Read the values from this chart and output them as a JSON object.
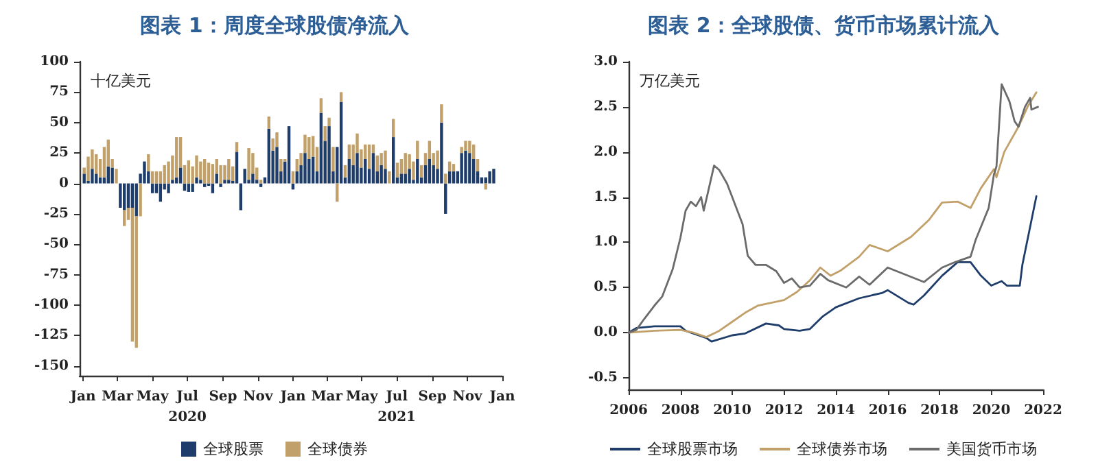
{
  "chart_data": [
    {
      "type": "bar",
      "title": "图表 1：周度全球股债净流入",
      "ylabel": "十亿美元",
      "stacked": true,
      "grid": false,
      "legend": "bottom",
      "x": [
        "2020-01-03",
        "2020-01-10",
        "2020-01-17",
        "2020-01-24",
        "2020-01-31",
        "2020-02-07",
        "2020-02-14",
        "2020-02-21",
        "2020-02-28",
        "2020-03-06",
        "2020-03-13",
        "2020-03-20",
        "2020-03-27",
        "2020-04-03",
        "2020-04-10",
        "2020-04-17",
        "2020-04-24",
        "2020-05-01",
        "2020-05-08",
        "2020-05-15",
        "2020-05-22",
        "2020-05-29",
        "2020-06-05",
        "2020-06-12",
        "2020-06-19",
        "2020-06-26",
        "2020-07-03",
        "2020-07-10",
        "2020-07-17",
        "2020-07-24",
        "2020-07-31",
        "2020-08-07",
        "2020-08-14",
        "2020-08-21",
        "2020-08-28",
        "2020-09-04",
        "2020-09-11",
        "2020-09-18",
        "2020-09-25",
        "2020-10-02",
        "2020-10-09",
        "2020-10-16",
        "2020-10-23",
        "2020-10-30",
        "2020-11-06",
        "2020-11-13",
        "2020-11-20",
        "2020-11-27",
        "2020-12-04",
        "2020-12-11",
        "2020-12-18",
        "2020-12-25",
        "2021-01-01",
        "2021-01-08",
        "2021-01-15",
        "2021-01-22",
        "2021-01-29",
        "2021-02-05",
        "2021-02-12",
        "2021-02-19",
        "2021-02-26",
        "2021-03-05",
        "2021-03-12",
        "2021-03-19",
        "2021-03-26",
        "2021-04-02",
        "2021-04-09",
        "2021-04-16",
        "2021-04-23",
        "2021-04-30",
        "2021-05-07",
        "2021-05-14",
        "2021-05-21",
        "2021-05-28",
        "2021-06-04",
        "2021-06-11",
        "2021-06-18",
        "2021-06-25",
        "2021-07-02",
        "2021-07-09",
        "2021-07-16",
        "2021-07-23",
        "2021-07-30",
        "2021-08-06",
        "2021-08-13",
        "2021-08-20",
        "2021-08-27",
        "2021-09-03",
        "2021-09-10",
        "2021-09-17",
        "2021-09-24",
        "2021-10-01",
        "2021-10-08",
        "2021-10-15",
        "2021-10-22",
        "2021-10-29",
        "2021-11-05",
        "2021-11-12",
        "2021-11-19",
        "2021-11-26",
        "2021-12-03",
        "2021-12-10",
        "2021-12-17"
      ],
      "series": [
        {
          "name": "全球股票",
          "color": "#1f3d6b",
          "values": [
            8,
            2,
            12,
            8,
            5,
            5,
            14,
            13,
            0,
            -20,
            -22,
            -20,
            -20,
            -27,
            8,
            18,
            10,
            -8,
            -8,
            -15,
            -5,
            -8,
            3,
            5,
            13,
            -6,
            -7,
            -7,
            5,
            3,
            -3,
            -2,
            -8,
            8,
            -3,
            3,
            3,
            2,
            26,
            -22,
            12,
            3,
            8,
            3,
            -3,
            5,
            45,
            27,
            30,
            10,
            18,
            47,
            -5,
            10,
            15,
            25,
            20,
            22,
            10,
            58,
            35,
            47,
            10,
            30,
            67,
            5,
            20,
            15,
            25,
            13,
            20,
            12,
            25,
            10,
            15,
            12,
            0,
            38,
            5,
            8,
            8,
            12,
            3,
            20,
            5,
            15,
            20,
            15,
            12,
            50,
            -25,
            10,
            10,
            10,
            25,
            27,
            25,
            20,
            10,
            5,
            5,
            10,
            12
          ]
        },
        {
          "name": "全球债券",
          "color": "#c2a06a",
          "values": [
            5,
            20,
            16,
            16,
            15,
            25,
            22,
            7,
            12,
            0,
            -13,
            -10,
            -110,
            -108,
            -27,
            0,
            14,
            10,
            10,
            10,
            15,
            18,
            20,
            33,
            25,
            15,
            19,
            14,
            18,
            15,
            20,
            17,
            16,
            12,
            15,
            12,
            17,
            12,
            8,
            0,
            0,
            26,
            17,
            10,
            3,
            0,
            10,
            10,
            12,
            10,
            2,
            0,
            10,
            10,
            10,
            15,
            18,
            17,
            20,
            12,
            12,
            7,
            20,
            -15,
            8,
            10,
            12,
            17,
            16,
            15,
            12,
            20,
            7,
            13,
            10,
            15,
            10,
            15,
            12,
            12,
            17,
            12,
            15,
            15,
            10,
            10,
            15,
            10,
            15,
            15,
            8,
            8,
            6,
            0,
            5,
            8,
            10,
            12,
            10,
            0,
            -5,
            0,
            0
          ]
        }
      ],
      "xlim": [
        "2019-12-26",
        "2022-01-01"
      ],
      "xticks": [
        {
          "value": "2020-01-01",
          "label": "Jan"
        },
        {
          "value": "2020-03-01",
          "label": "Mar"
        },
        {
          "value": "2020-05-01",
          "label": "May"
        },
        {
          "value": "2020-07-01",
          "label": "Jul\n2020"
        },
        {
          "value": "2020-09-01",
          "label": "Sep"
        },
        {
          "value": "2020-11-01",
          "label": "Nov"
        },
        {
          "value": "2021-01-01",
          "label": "Jan"
        },
        {
          "value": "2021-03-01",
          "label": "Mar"
        },
        {
          "value": "2021-05-01",
          "label": "May"
        },
        {
          "value": "2021-07-01",
          "label": "Jul\n2021"
        },
        {
          "value": "2021-09-01",
          "label": "Sep"
        },
        {
          "value": "2021-11-01",
          "label": "Nov"
        },
        {
          "value": "2022-01-01",
          "label": "Jan"
        }
      ],
      "ylim": [
        -158,
        100
      ],
      "yticks": [
        -150,
        -125,
        -100,
        -75,
        -50,
        -25,
        0,
        25,
        50,
        75,
        100
      ]
    },
    {
      "type": "line",
      "title": "图表 2：全球股债、货币市场累计流入",
      "ylabel": "万亿美元",
      "grid": false,
      "legend": "bottom",
      "marker": "none",
      "series": [
        {
          "name": "全球股票市场",
          "color": "#1f3d6b",
          "x": [
            2006,
            2006.3,
            2007,
            2008,
            2008.2,
            2009,
            2009.2,
            2010,
            2010.5,
            2011.3,
            2011.8,
            2012,
            2012.6,
            2013,
            2013.5,
            2014,
            2014.9,
            2015.8,
            2016,
            2016.8,
            2017,
            2017.4,
            2018.1,
            2018.7,
            2019.2,
            2019.6,
            2020,
            2020.4,
            2020.6,
            2021.1,
            2021.2,
            2021.47,
            2021.74
          ],
          "values": [
            0,
            0.05,
            0.07,
            0.07,
            0.02,
            -0.06,
            -0.1,
            -0.03,
            -0.01,
            0.1,
            0.08,
            0.04,
            0.02,
            0.04,
            0.18,
            0.28,
            0.38,
            0.44,
            0.47,
            0.33,
            0.31,
            0.41,
            0.63,
            0.78,
            0.78,
            0.63,
            0.52,
            0.57,
            0.52,
            0.52,
            0.75,
            1.13,
            1.51
          ]
        },
        {
          "name": "全球债券市场",
          "color": "#c2a06a",
          "x": [
            2006,
            2007,
            2008,
            2008.5,
            2009,
            2009.5,
            2010,
            2010.5,
            2011,
            2011.5,
            2012,
            2012.5,
            2013,
            2013.4,
            2013.8,
            2014.2,
            2014.9,
            2015.3,
            2016,
            2016.9,
            2017.6,
            2018.1,
            2018.7,
            2019.2,
            2019.6,
            2020.1,
            2020.2,
            2020.5,
            2021.05,
            2021.4,
            2021.74
          ],
          "values": [
            0,
            0.02,
            0.03,
            0,
            -0.05,
            0.02,
            0.12,
            0.22,
            0.3,
            0.33,
            0.36,
            0.45,
            0.58,
            0.72,
            0.63,
            0.69,
            0.84,
            0.97,
            0.9,
            1.06,
            1.25,
            1.44,
            1.45,
            1.38,
            1.6,
            1.81,
            1.72,
            2.0,
            2.28,
            2.5,
            2.66
          ]
        },
        {
          "name": "美国货币市场",
          "color": "#6b6b6b",
          "x": [
            2006,
            2006.3,
            2006.6,
            2007,
            2007.3,
            2007.7,
            2008,
            2008.2,
            2008.4,
            2008.6,
            2008.8,
            2008.9,
            2009.1,
            2009.3,
            2009.5,
            2009.8,
            2010.2,
            2010.4,
            2010.6,
            2010.9,
            2011.3,
            2011.7,
            2012,
            2012.3,
            2012.6,
            2013,
            2013.4,
            2013.7,
            2014.4,
            2014.9,
            2015.3,
            2016,
            2016.7,
            2017.4,
            2018.1,
            2018.6,
            2019.2,
            2019.4,
            2019.9,
            2020.1,
            2020.2,
            2020.4,
            2020.7,
            2020.9,
            2021.05,
            2021.3,
            2021.5,
            2021.55,
            2021.8
          ],
          "values": [
            0,
            0.03,
            0.15,
            0.3,
            0.4,
            0.7,
            1.05,
            1.35,
            1.45,
            1.4,
            1.5,
            1.35,
            1.6,
            1.85,
            1.8,
            1.65,
            1.35,
            1.2,
            0.85,
            0.75,
            0.75,
            0.68,
            0.55,
            0.6,
            0.5,
            0.52,
            0.65,
            0.58,
            0.5,
            0.62,
            0.53,
            0.72,
            0.64,
            0.56,
            0.72,
            0.78,
            0.84,
            1.03,
            1.38,
            1.75,
            1.84,
            2.75,
            2.56,
            2.34,
            2.28,
            2.5,
            2.6,
            2.47,
            2.5
          ]
        }
      ],
      "xlim": [
        2006,
        2022
      ],
      "xticks": [
        2006,
        2008,
        2010,
        2012,
        2014,
        2016,
        2018,
        2020,
        2022
      ],
      "ylim": [
        -0.63,
        3.0
      ],
      "yticks": [
        {
          "value": -0.5,
          "label": "-0.5"
        },
        {
          "value": 0,
          "label": "0.0"
        },
        {
          "value": 0.5,
          "label": "0.5"
        },
        {
          "value": 1,
          "label": "1.0"
        },
        {
          "value": 1.5,
          "label": "1.5"
        },
        {
          "value": 2,
          "label": "2.0"
        },
        {
          "value": 2.5,
          "label": "2.5"
        },
        {
          "value": 3,
          "label": "3.0"
        }
      ]
    }
  ]
}
